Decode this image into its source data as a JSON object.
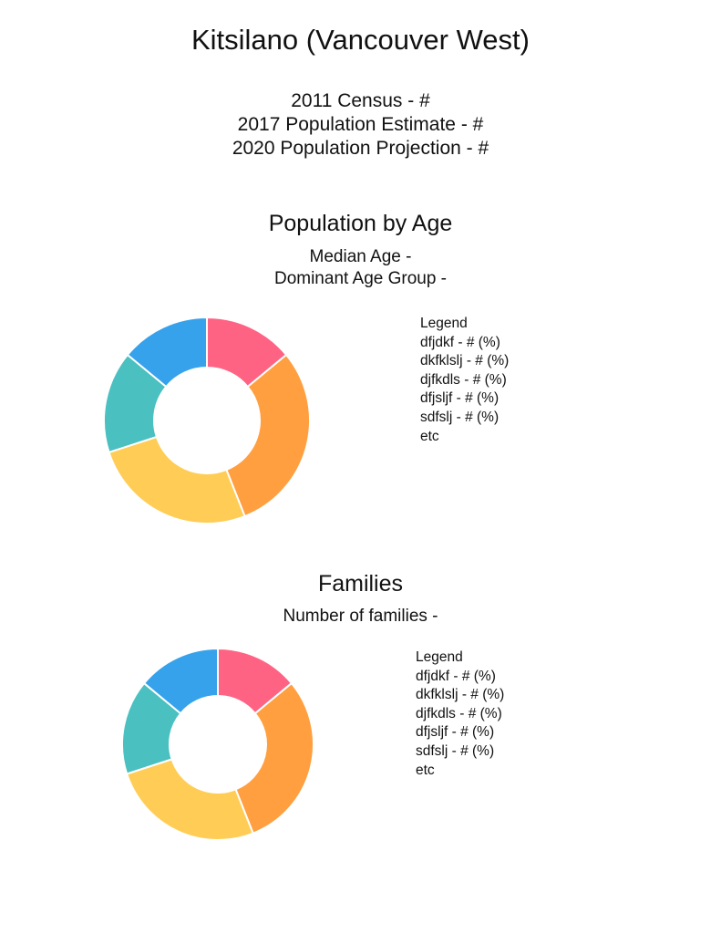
{
  "title": "Kitsilano (Vancouver West)",
  "stats": [
    "2011 Census - #",
    "2017 Population Estimate - #",
    "2020 Population Projection - #"
  ],
  "sections": [
    {
      "title": "Population by Age",
      "subtitles": [
        "Median Age -",
        "Dominant Age Group -"
      ],
      "legend": {
        "title": "Legend",
        "items": [
          "dfjdkf - # (%)",
          "dkfklslj - # (%)",
          "djfkdls - # (%)",
          "dfjsljf - # (%)",
          "sdfslj - # (%)",
          "etc"
        ]
      }
    },
    {
      "title": "Families",
      "subtitles": [
        "Number of families -"
      ],
      "legend": {
        "title": "Legend",
        "items": [
          "dfjdkf - # (%)",
          "dkfklslj - # (%)",
          "djfkdls - # (%)",
          "dfjsljf - # (%)",
          "sdfslj - # (%)",
          "etc"
        ]
      }
    }
  ],
  "chart_data": [
    {
      "type": "pie",
      "subtype": "donut",
      "title": "Population by Age",
      "categories": [
        "dfjdkf",
        "dkfklslj",
        "djfkdls",
        "dfjsljf",
        "sdfslj"
      ],
      "values": [
        14,
        30,
        26,
        16,
        14
      ],
      "colors": [
        "#FF6384",
        "#FF9F40",
        "#FFCD56",
        "#4BC0C0",
        "#36A2EB"
      ],
      "legend_position": "right"
    },
    {
      "type": "pie",
      "subtype": "donut",
      "title": "Families",
      "categories": [
        "dfjdkf",
        "dkfklslj",
        "djfkdls",
        "dfjsljf",
        "sdfslj"
      ],
      "values": [
        14,
        30,
        26,
        16,
        14
      ],
      "colors": [
        "#FF6384",
        "#FF9F40",
        "#FFCD56",
        "#4BC0C0",
        "#36A2EB"
      ],
      "legend_position": "right"
    }
  ]
}
